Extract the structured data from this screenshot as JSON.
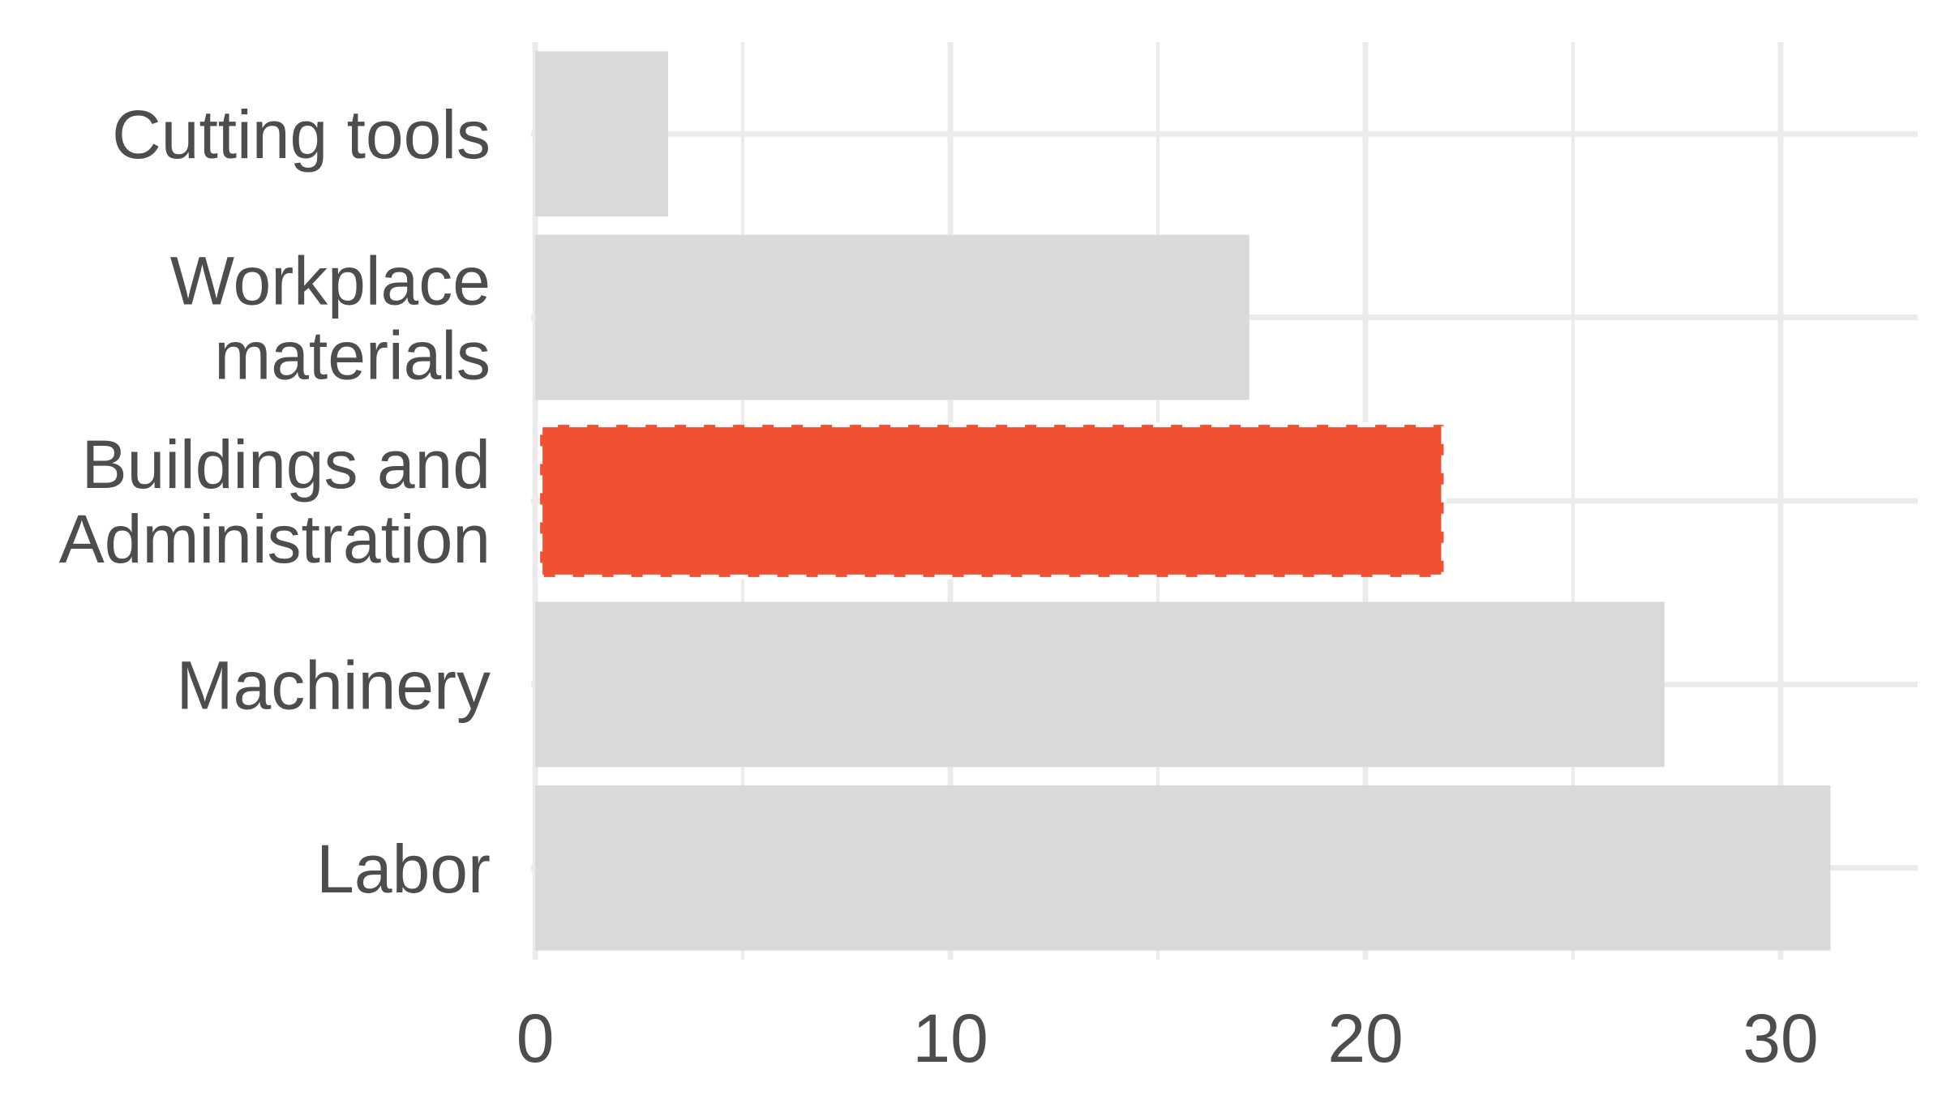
{
  "chart_data": {
    "type": "bar",
    "orientation": "horizontal",
    "categories": [
      [
        "Cutting tools"
      ],
      [
        "Workplace",
        "materials"
      ],
      [
        "Buildings and",
        "Administration"
      ],
      [
        "Machinery"
      ],
      [
        "Labor"
      ]
    ],
    "values": [
      3.2,
      17.2,
      22.0,
      27.2,
      31.2
    ],
    "highlighted_category_index": 2,
    "xlim": [
      -0.1,
      33.3
    ],
    "x_ticks": [
      0,
      10,
      20,
      30
    ],
    "x_tick_labels": [
      "0",
      "10",
      "20",
      "30"
    ],
    "x_minor_ticks": [
      5,
      15,
      25
    ],
    "grid": true,
    "title": "",
    "xlabel": "",
    "ylabel": "",
    "colors": {
      "bar": "#d9d9d9",
      "highlight": "#f05133",
      "highlight_border": "#ffffff",
      "grid": "#ebebeb",
      "text": "#4d4d4d",
      "background": "#ffffff"
    }
  }
}
